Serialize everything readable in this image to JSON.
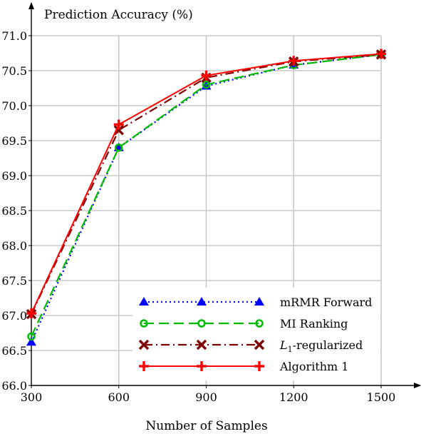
{
  "chart_data": {
    "type": "line",
    "title": "",
    "ylabel": "Prediction Accuracy (%)",
    "xlabel": "Number of Samples",
    "x": [
      300,
      600,
      900,
      1200,
      1500
    ],
    "x_tick_labels": [
      "300",
      "600",
      "900",
      "1200",
      "1500"
    ],
    "y_tick_labels": [
      "66.0",
      "66.5",
      "67.0",
      "67.5",
      "68.0",
      "68.5",
      "69.0",
      "69.5",
      "70.0",
      "70.5",
      "71.0"
    ],
    "xlim": [
      300,
      1500
    ],
    "ylim": [
      66.0,
      71.0
    ],
    "grid": true,
    "legend_position": "bottom-right",
    "series": [
      {
        "name": "mRMR Forward",
        "values": [
          66.62,
          69.4,
          70.28,
          70.58,
          70.73
        ],
        "color": "#0000ff",
        "dash": "dotted",
        "marker": "triangle"
      },
      {
        "name": "MI Ranking",
        "values": [
          66.7,
          69.4,
          70.3,
          70.58,
          70.73
        ],
        "color": "#00bb00",
        "dash": "dashed",
        "marker": "circle"
      },
      {
        "name": "L1-regularized",
        "values": [
          67.02,
          69.65,
          70.4,
          70.63,
          70.73
        ],
        "color": "#800000",
        "dash": "dashdot",
        "marker": "x"
      },
      {
        "name": "Algorithm 1",
        "values": [
          67.03,
          69.73,
          70.43,
          70.64,
          70.74
        ],
        "color": "#ff0000",
        "dash": "solid",
        "marker": "plus"
      }
    ]
  }
}
